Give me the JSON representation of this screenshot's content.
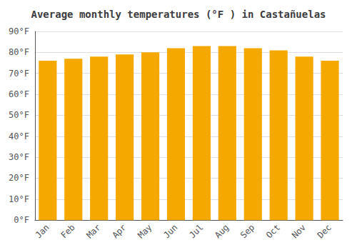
{
  "chart_data": {
    "type": "bar",
    "title": "Average monthly temperatures (°F ) in Castañuelas",
    "categories": [
      "Jan",
      "Feb",
      "Mar",
      "Apr",
      "May",
      "Jun",
      "Jul",
      "Aug",
      "Sep",
      "Oct",
      "Nov",
      "Dec"
    ],
    "values": [
      76,
      77,
      78,
      79,
      80,
      82,
      83,
      83,
      82,
      81,
      78,
      76
    ],
    "color": "#F5A800",
    "ylim": [
      0,
      90
    ],
    "yticks": [
      {
        "value": 0,
        "label": "0°F"
      },
      {
        "value": 10,
        "label": "10°F"
      },
      {
        "value": 20,
        "label": "20°F"
      },
      {
        "value": 30,
        "label": "30°F"
      },
      {
        "value": 40,
        "label": "40°F"
      },
      {
        "value": 50,
        "label": "50°F"
      },
      {
        "value": 60,
        "label": "60°F"
      },
      {
        "value": 70,
        "label": "70°F"
      },
      {
        "value": 80,
        "label": "80°F"
      },
      {
        "value": 90,
        "label": "90°F"
      }
    ],
    "grid": true
  }
}
